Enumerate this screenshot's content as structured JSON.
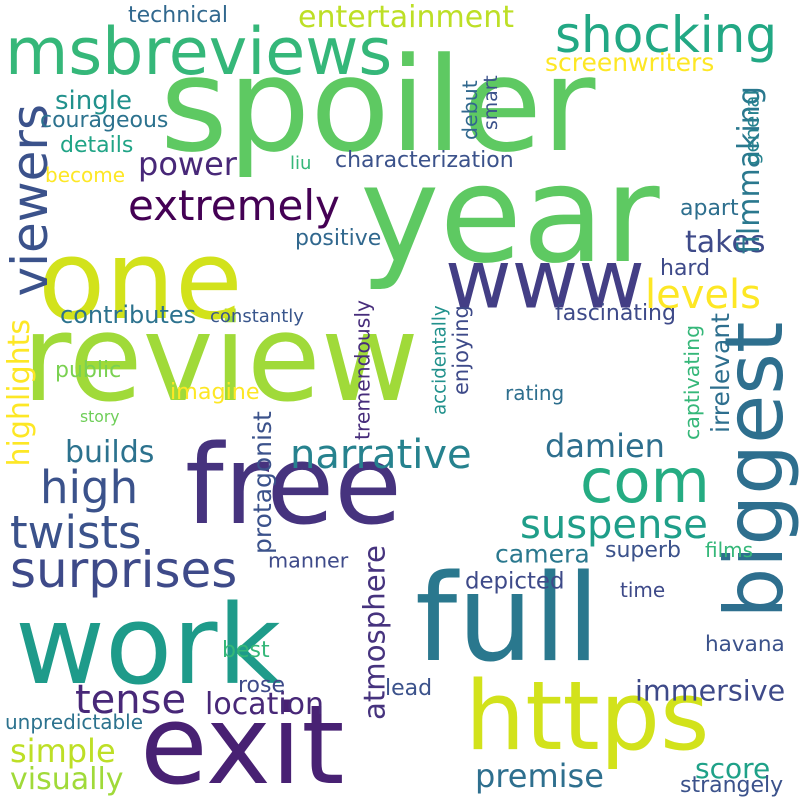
{
  "words": [
    {
      "text": "review",
      "color": "#a0da39"
    },
    {
      "text": "spoiler",
      "color": "#5ec962"
    },
    {
      "text": "year",
      "color": "#5ec962"
    },
    {
      "text": "one",
      "color": "#d2e21b"
    },
    {
      "text": "free",
      "color": "#46337e"
    },
    {
      "text": "exit",
      "color": "#482173"
    },
    {
      "text": "work",
      "color": "#1e9b8a"
    },
    {
      "text": "full",
      "color": "#2a788e"
    },
    {
      "text": "https",
      "color": "#d2e21b"
    },
    {
      "text": "msbreviews",
      "color": "#35b779"
    },
    {
      "text": "www",
      "color": "#433e85"
    },
    {
      "text": "biggest",
      "color": "#2e6f8e"
    },
    {
      "text": "com",
      "color": "#25ac82"
    },
    {
      "text": "shocking",
      "color": "#22a884"
    },
    {
      "text": "entertainment",
      "color": "#bddf26"
    },
    {
      "text": "technical",
      "color": "#31688e"
    },
    {
      "text": "screenwriters",
      "color": "#fde725"
    },
    {
      "text": "extremely",
      "color": "#440154"
    },
    {
      "text": "viewers",
      "color": "#3b528b"
    },
    {
      "text": "levels",
      "color": "#fde725"
    },
    {
      "text": "takes",
      "color": "#3e4a89"
    },
    {
      "text": "power",
      "color": "#482878"
    },
    {
      "text": "single",
      "color": "#21918c"
    },
    {
      "text": "courageous",
      "color": "#2c728e"
    },
    {
      "text": "details",
      "color": "#20a486"
    },
    {
      "text": "become",
      "color": "#fde725"
    },
    {
      "text": "characterization",
      "color": "#3b528b"
    },
    {
      "text": "liu",
      "color": "#35b779"
    },
    {
      "text": "debut",
      "color": "#31688e"
    },
    {
      "text": "smart",
      "color": "#3b528b"
    },
    {
      "text": "filmmaking",
      "color": "#2a788e"
    },
    {
      "text": "general",
      "color": "#26828e"
    },
    {
      "text": "apart",
      "color": "#2e6f8e"
    },
    {
      "text": "positive",
      "color": "#31688e"
    },
    {
      "text": "narrative",
      "color": "#26828e"
    },
    {
      "text": "high",
      "color": "#3b528b"
    },
    {
      "text": "suspense",
      "color": "#1f9e89"
    },
    {
      "text": "damien",
      "color": "#2e6f8e"
    },
    {
      "text": "hard",
      "color": "#3e4a89"
    },
    {
      "text": "fascinating",
      "color": "#3e4a89"
    },
    {
      "text": "contributes",
      "color": "#2c728e"
    },
    {
      "text": "constantly",
      "color": "#39568c"
    },
    {
      "text": "highlights",
      "color": "#fde725"
    },
    {
      "text": "tremendously",
      "color": "#472d7b"
    },
    {
      "text": "accidentally",
      "color": "#21918c"
    },
    {
      "text": "enjoying",
      "color": "#3e4a89"
    },
    {
      "text": "captivating",
      "color": "#35b779"
    },
    {
      "text": "irrelevant",
      "color": "#2e6f8e"
    },
    {
      "text": "public",
      "color": "#7ad151"
    },
    {
      "text": "imagine",
      "color": "#fde725"
    },
    {
      "text": "rating",
      "color": "#2e6f8e"
    },
    {
      "text": "story",
      "color": "#6ece58"
    },
    {
      "text": "builds",
      "color": "#2c728e"
    },
    {
      "text": "twists",
      "color": "#3b528b"
    },
    {
      "text": "surprises",
      "color": "#3e4a89"
    },
    {
      "text": "protagonist",
      "color": "#3b528b"
    },
    {
      "text": "camera",
      "color": "#2a788e"
    },
    {
      "text": "superb",
      "color": "#3b528b"
    },
    {
      "text": "films",
      "color": "#35b779"
    },
    {
      "text": "depicted",
      "color": "#3e4a89"
    },
    {
      "text": "time",
      "color": "#3e4a89"
    },
    {
      "text": "manner",
      "color": "#3e4a89"
    },
    {
      "text": "atmosphere",
      "color": "#46337e"
    },
    {
      "text": "havana",
      "color": "#3b528b"
    },
    {
      "text": "best",
      "color": "#35b779"
    },
    {
      "text": "tense",
      "color": "#482878"
    },
    {
      "text": "location",
      "color": "#482878"
    },
    {
      "text": "immersive",
      "color": "#3e4a89"
    },
    {
      "text": "rose",
      "color": "#3e4a89"
    },
    {
      "text": "lead",
      "color": "#3b528b"
    },
    {
      "text": "unpredictable",
      "color": "#2c728e"
    },
    {
      "text": "simple",
      "color": "#bddf26"
    },
    {
      "text": "visually",
      "color": "#a0da39"
    },
    {
      "text": "premise",
      "color": "#2e6f8e"
    },
    {
      "text": "score",
      "color": "#1fa188"
    },
    {
      "text": "strangely",
      "color": "#3b528b"
    }
  ]
}
